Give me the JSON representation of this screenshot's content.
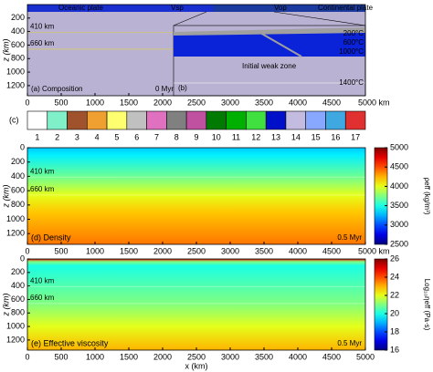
{
  "chart_data": [
    {
      "type": "composition",
      "xlim": [
        0,
        5000
      ],
      "ylim": [
        0,
        1350
      ],
      "xticks": [
        0,
        500,
        1000,
        1500,
        2000,
        2500,
        3000,
        3500,
        4000,
        4500,
        {
          "value": 5000,
          "label": "5000 km"
        }
      ],
      "yticks": [
        200,
        400,
        600,
        800,
        1000,
        1200
      ],
      "ylabel": "z (km)",
      "annotations": [
        "Oceanic plate",
        "Vsp",
        "Vop",
        "Continental plate",
        "410 km",
        "660 km",
        "(a) Composition",
        "0 Myr"
      ],
      "inset": {
        "panel": "(b)",
        "labels": [
          "200°C",
          "600°C",
          "1000°C",
          "Initial weak zone",
          "1400°C"
        ]
      }
    },
    {
      "type": "legend",
      "categories": [
        "1",
        "2",
        "3",
        "4",
        "5",
        "6",
        "7",
        "8",
        "9",
        "10",
        "11",
        "12",
        "13",
        "14",
        "15",
        "16",
        "17"
      ],
      "colors": [
        "#ffffff",
        "#80f0c8",
        "#a0522d",
        "#f0a030",
        "#ffff70",
        "#c0c0c0",
        "#e070c0",
        "#808080",
        "#c050a0",
        "#007a00",
        "#00b000",
        "#40e040",
        "#0010c8",
        "#c4bce0",
        "#88a8ff",
        "#40a8e0",
        "#e03030"
      ],
      "label": "(c)"
    },
    {
      "type": "field",
      "xlim": [
        0,
        5000
      ],
      "ylim": [
        0,
        1350
      ],
      "xticks": [
        0,
        500,
        1000,
        1500,
        2000,
        2500,
        3000,
        3500,
        4000,
        4500,
        {
          "value": 5000,
          "label": "5000 km"
        }
      ],
      "yticks": [
        0,
        200,
        400,
        600,
        800,
        1000,
        1200
      ],
      "ylabel": "z (km)",
      "profile": {
        "depth": [
          0,
          100,
          400,
          660,
          900,
          1350
        ],
        "values": [
          3300,
          3400,
          3700,
          4000,
          4200,
          4400
        ]
      },
      "clim": [
        2500,
        5000
      ],
      "cticks": [
        2500,
        3000,
        3500,
        4000,
        4500,
        5000
      ],
      "clabel": "ρeff (kg/m³)",
      "annotations": [
        "410 km",
        "660 km",
        "(d) Density",
        "0.5 Myr"
      ]
    },
    {
      "type": "field",
      "xlim": [
        0,
        5000
      ],
      "ylim": [
        0,
        1350
      ],
      "xticks": [
        0,
        500,
        1000,
        1500,
        2000,
        2500,
        3000,
        3500,
        4000,
        4500,
        5000
      ],
      "yticks": [
        0,
        200,
        400,
        600,
        800,
        1000,
        1200
      ],
      "ylabel": "z (km)",
      "xlabel": "x (km)",
      "profile": {
        "depth": [
          0,
          40,
          100,
          660,
          1000,
          1350
        ],
        "values": [
          25,
          21,
          20,
          21,
          22,
          23
        ]
      },
      "clim": [
        16,
        26
      ],
      "cticks": [
        16,
        18,
        20,
        22,
        24,
        26
      ],
      "clabel": "Log₁₀ηeff (Pa·s)",
      "annotations": [
        "410 km",
        "660 km",
        "(e) Effective viscosity",
        "0.5 Myr"
      ]
    }
  ]
}
